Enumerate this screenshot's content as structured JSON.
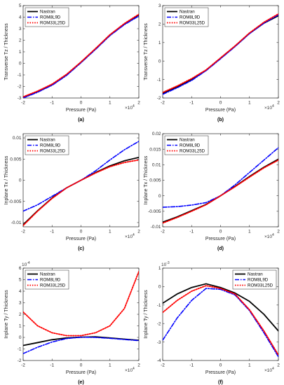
{
  "figure": {
    "legend_labels": [
      "Nastran",
      "ROM8L9D",
      "ROM33L25D"
    ],
    "series_colors": [
      "#000000",
      "#0000ff",
      "#ff0000"
    ],
    "series_dash": [
      "solid",
      "dashdot",
      "dotted"
    ]
  },
  "chart_data": [
    {
      "type": "line",
      "panel_label": "(a)",
      "xlabel": "Pressure (Pa)",
      "ylabel": "Transverse Tz / Thickness",
      "x_exponent": "10^4",
      "y_exponent": "",
      "xlim": [
        -2,
        2
      ],
      "ylim": [
        -3,
        5
      ],
      "xticks": [
        -2,
        -1,
        0,
        1,
        2
      ],
      "yticks": [
        -3,
        -2,
        -1,
        0,
        1,
        2,
        3,
        4,
        5
      ],
      "ytick_labels": [
        "-3",
        "-2",
        "-1",
        "0",
        "1",
        "2",
        "3",
        "4",
        "5"
      ],
      "x": [
        -2,
        -1.5,
        -1,
        -0.5,
        0,
        0.5,
        1,
        1.5,
        2
      ],
      "series": [
        {
          "name": "Nastran",
          "values": [
            -2.95,
            -2.45,
            -1.85,
            -1.0,
            0.1,
            1.25,
            2.45,
            3.4,
            4.2
          ]
        },
        {
          "name": "ROM8L9D",
          "values": [
            -3.0,
            -2.5,
            -1.9,
            -1.05,
            0.05,
            1.2,
            2.4,
            3.35,
            4.1
          ]
        },
        {
          "name": "ROM33L25D",
          "values": [
            -2.9,
            -2.4,
            -1.8,
            -0.95,
            0.12,
            1.28,
            2.48,
            3.45,
            4.25
          ]
        }
      ],
      "legend": "top-left",
      "grid": false
    },
    {
      "type": "line",
      "panel_label": "(b)",
      "xlabel": "Pressure (Pa)",
      "ylabel": "Transverse Tz / Thickness",
      "x_exponent": "10^4",
      "y_exponent": "",
      "xlim": [
        -2,
        2
      ],
      "ylim": [
        -2,
        3
      ],
      "xticks": [
        -2,
        -1,
        0,
        1,
        2
      ],
      "yticks": [
        -2,
        -1,
        0,
        1,
        2,
        3
      ],
      "ytick_labels": [
        "-2",
        "-1",
        "0",
        "1",
        "2",
        "3"
      ],
      "x": [
        -2,
        -1.5,
        -1,
        -0.5,
        0,
        0.5,
        1,
        1.5,
        2
      ],
      "series": [
        {
          "name": "Nastran",
          "values": [
            -1.75,
            -1.4,
            -1.0,
            -0.5,
            0.15,
            0.8,
            1.5,
            2.05,
            2.45
          ]
        },
        {
          "name": "ROM8L9D",
          "values": [
            -1.8,
            -1.45,
            -1.05,
            -0.52,
            0.12,
            0.78,
            1.48,
            2.05,
            2.5
          ]
        },
        {
          "name": "ROM33L25D",
          "values": [
            -1.7,
            -1.35,
            -0.95,
            -0.48,
            0.17,
            0.82,
            1.52,
            2.1,
            2.55
          ]
        }
      ],
      "legend": "top-left",
      "grid": false
    },
    {
      "type": "line",
      "panel_label": "(c)",
      "xlabel": "Pressure (Pa)",
      "ylabel": "Inplane Tx / Thickness",
      "x_exponent": "10^4",
      "y_exponent": "",
      "xlim": [
        -2,
        2
      ],
      "ylim": [
        -0.011,
        0.011
      ],
      "xticks": [
        -2,
        -1,
        0,
        1,
        2
      ],
      "yticks": [
        -0.01,
        -0.005,
        0,
        0.005,
        0.01
      ],
      "ytick_labels": [
        "-0.01",
        "-0.005",
        "0",
        "0.005",
        "0.01"
      ],
      "x": [
        -2,
        -1.5,
        -1,
        -0.5,
        0,
        0.5,
        1,
        1.5,
        2
      ],
      "series": [
        {
          "name": "Nastran",
          "values": [
            -0.0105,
            -0.0072,
            -0.0042,
            -0.0018,
            0.0,
            0.0018,
            0.0034,
            0.0046,
            0.0054
          ]
        },
        {
          "name": "ROM8L9D",
          "values": [
            -0.0073,
            -0.0058,
            -0.0038,
            -0.0018,
            0.0,
            0.0022,
            0.0048,
            0.0072,
            0.0092
          ]
        },
        {
          "name": "ROM33L25D",
          "values": [
            -0.0107,
            -0.0073,
            -0.0043,
            -0.0018,
            0.0,
            0.0017,
            0.0032,
            0.0042,
            0.0048
          ]
        }
      ],
      "legend": "top-left",
      "grid": false
    },
    {
      "type": "line",
      "panel_label": "(d)",
      "xlabel": "Pressure (Pa)",
      "ylabel": "Inplane Tx / Thickness",
      "x_exponent": "10^4",
      "y_exponent": "",
      "xlim": [
        -2,
        2
      ],
      "ylim": [
        -0.01,
        0.02
      ],
      "xticks": [
        -2,
        -1,
        0,
        1,
        2
      ],
      "yticks": [
        -0.01,
        -0.005,
        0,
        0.005,
        0.01,
        0.015,
        0.02
      ],
      "ytick_labels": [
        "-0.01",
        "-0.005",
        "0",
        "0.005",
        "0.01",
        "0.015",
        "0.02"
      ],
      "x": [
        -2,
        -1.5,
        -1,
        -0.5,
        0,
        0.5,
        1,
        1.5,
        2
      ],
      "series": [
        {
          "name": "Nastran",
          "values": [
            -0.0085,
            -0.0068,
            -0.0048,
            -0.0028,
            0.0,
            0.003,
            0.0062,
            0.0092,
            0.0118
          ]
        },
        {
          "name": "ROM8L9D",
          "values": [
            -0.0037,
            -0.0035,
            -0.003,
            -0.0022,
            0.0,
            0.0035,
            0.0075,
            0.0115,
            0.0155
          ]
        },
        {
          "name": "ROM33L25D",
          "values": [
            -0.0088,
            -0.007,
            -0.005,
            -0.0029,
            0.0,
            0.0029,
            0.006,
            0.009,
            0.0115
          ]
        }
      ],
      "legend": "top-left",
      "grid": false
    },
    {
      "type": "line",
      "panel_label": "(e)",
      "xlabel": "Pressure (Pa)",
      "ylabel": "Inplane Ty / Thickness",
      "x_exponent": "10^4",
      "y_exponent": "10^-4",
      "xlim": [
        -2,
        2
      ],
      "ylim": [
        -2,
        6
      ],
      "xticks": [
        -2,
        -1,
        0,
        1,
        2
      ],
      "yticks": [
        -2,
        -1,
        0,
        1,
        2,
        3,
        4,
        5,
        6
      ],
      "ytick_labels": [
        "-2",
        "-1",
        "0",
        "1",
        "2",
        "3",
        "4",
        "5",
        "6"
      ],
      "x": [
        -2,
        -1.5,
        -1,
        -0.5,
        0,
        0.5,
        1,
        1.5,
        2
      ],
      "series": [
        {
          "name": "Nastran",
          "values": [
            -0.7,
            -0.45,
            -0.2,
            -0.05,
            0.02,
            0.05,
            -0.05,
            -0.15,
            -0.25
          ]
        },
        {
          "name": "ROM8L9D",
          "values": [
            -1.4,
            -0.85,
            -0.4,
            -0.1,
            0.02,
            0.0,
            -0.08,
            -0.18,
            -0.28
          ]
        },
        {
          "name": "ROM33L25D",
          "values": [
            2.2,
            1.0,
            0.4,
            0.15,
            0.15,
            0.4,
            1.0,
            2.5,
            5.7
          ]
        }
      ],
      "legend": "top-left",
      "grid": false
    },
    {
      "type": "line",
      "panel_label": "(f)",
      "xlabel": "Pressure (Pa)",
      "ylabel": "Inplane Ty / Thickness",
      "x_exponent": "10^4",
      "y_exponent": "10^-3",
      "xlim": [
        -2,
        2
      ],
      "ylim": [
        -4,
        1
      ],
      "xticks": [
        -2,
        -1,
        0,
        1,
        2
      ],
      "yticks": [
        -4,
        -3,
        -2,
        -1,
        0,
        1
      ],
      "ytick_labels": [
        "-4",
        "-3",
        "-2",
        "-1",
        "0",
        "1"
      ],
      "x": [
        -2,
        -1.5,
        -1,
        -0.5,
        0,
        0.5,
        1,
        1.5,
        2
      ],
      "series": [
        {
          "name": "Nastran",
          "values": [
            -0.9,
            -0.4,
            -0.05,
            0.15,
            -0.05,
            -0.35,
            -0.8,
            -1.5,
            -2.4
          ]
        },
        {
          "name": "ROM8L9D",
          "values": [
            -2.9,
            -1.7,
            -0.75,
            -0.1,
            -0.15,
            -0.45,
            -1.3,
            -2.5,
            -3.8
          ]
        },
        {
          "name": "ROM33L25D",
          "values": [
            -1.4,
            -0.75,
            -0.25,
            0.05,
            -0.1,
            -0.4,
            -1.25,
            -2.4,
            -3.7
          ]
        }
      ],
      "legend": "top-right",
      "grid": false
    }
  ]
}
